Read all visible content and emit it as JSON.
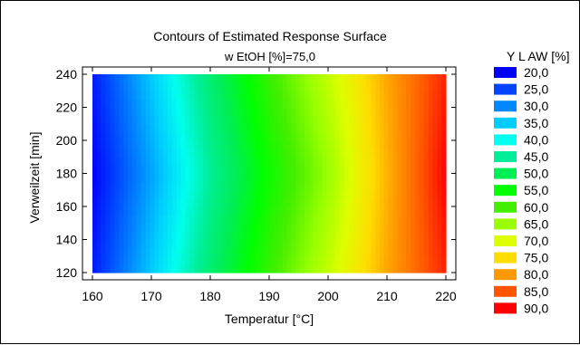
{
  "chart_data": {
    "type": "heatmap",
    "title": "Contours of Estimated Response Surface",
    "subtitle": "w EtOH [%]=75,0",
    "xlabel": "Temperatur [°C]",
    "ylabel": "Verweilzeit [min]",
    "xlim": [
      160,
      220
    ],
    "ylim": [
      120,
      240
    ],
    "x_ticks": [
      160,
      170,
      180,
      190,
      200,
      210,
      220
    ],
    "y_ticks": [
      120,
      140,
      160,
      180,
      200,
      220,
      240
    ],
    "legend_title": "Y L AW [%]",
    "legend_position": "right",
    "grid": false,
    "surface_samples": {
      "x": [
        160,
        170,
        180,
        190,
        200,
        210,
        220
      ],
      "y": [
        120,
        180,
        240
      ],
      "z": [
        [
          22,
          35,
          48,
          59,
          68,
          79,
          88
        ],
        [
          20,
          32,
          45,
          56,
          65,
          78,
          90
        ],
        [
          22,
          35,
          48,
          59,
          68,
          79,
          88
        ]
      ]
    },
    "legend": [
      {
        "label": "20,0",
        "value": 20,
        "color": "#0000ff"
      },
      {
        "label": "25,0",
        "value": 25,
        "color": "#0044ff"
      },
      {
        "label": "30,0",
        "value": 30,
        "color": "#0088ff"
      },
      {
        "label": "35,0",
        "value": 35,
        "color": "#00ccff"
      },
      {
        "label": "40,0",
        "value": 40,
        "color": "#00ffee"
      },
      {
        "label": "45,0",
        "value": 45,
        "color": "#00ee99"
      },
      {
        "label": "50,0",
        "value": 50,
        "color": "#00ee55"
      },
      {
        "label": "55,0",
        "value": 55,
        "color": "#00ff00"
      },
      {
        "label": "60,0",
        "value": 60,
        "color": "#44ee00"
      },
      {
        "label": "65,0",
        "value": 65,
        "color": "#99ff00"
      },
      {
        "label": "70,0",
        "value": 70,
        "color": "#ddff00"
      },
      {
        "label": "75,0",
        "value": 75,
        "color": "#ffdd00"
      },
      {
        "label": "80,0",
        "value": 80,
        "color": "#ff9900"
      },
      {
        "label": "85,0",
        "value": 85,
        "color": "#ff5500"
      },
      {
        "label": "90,0",
        "value": 90,
        "color": "#ff0000"
      }
    ]
  }
}
